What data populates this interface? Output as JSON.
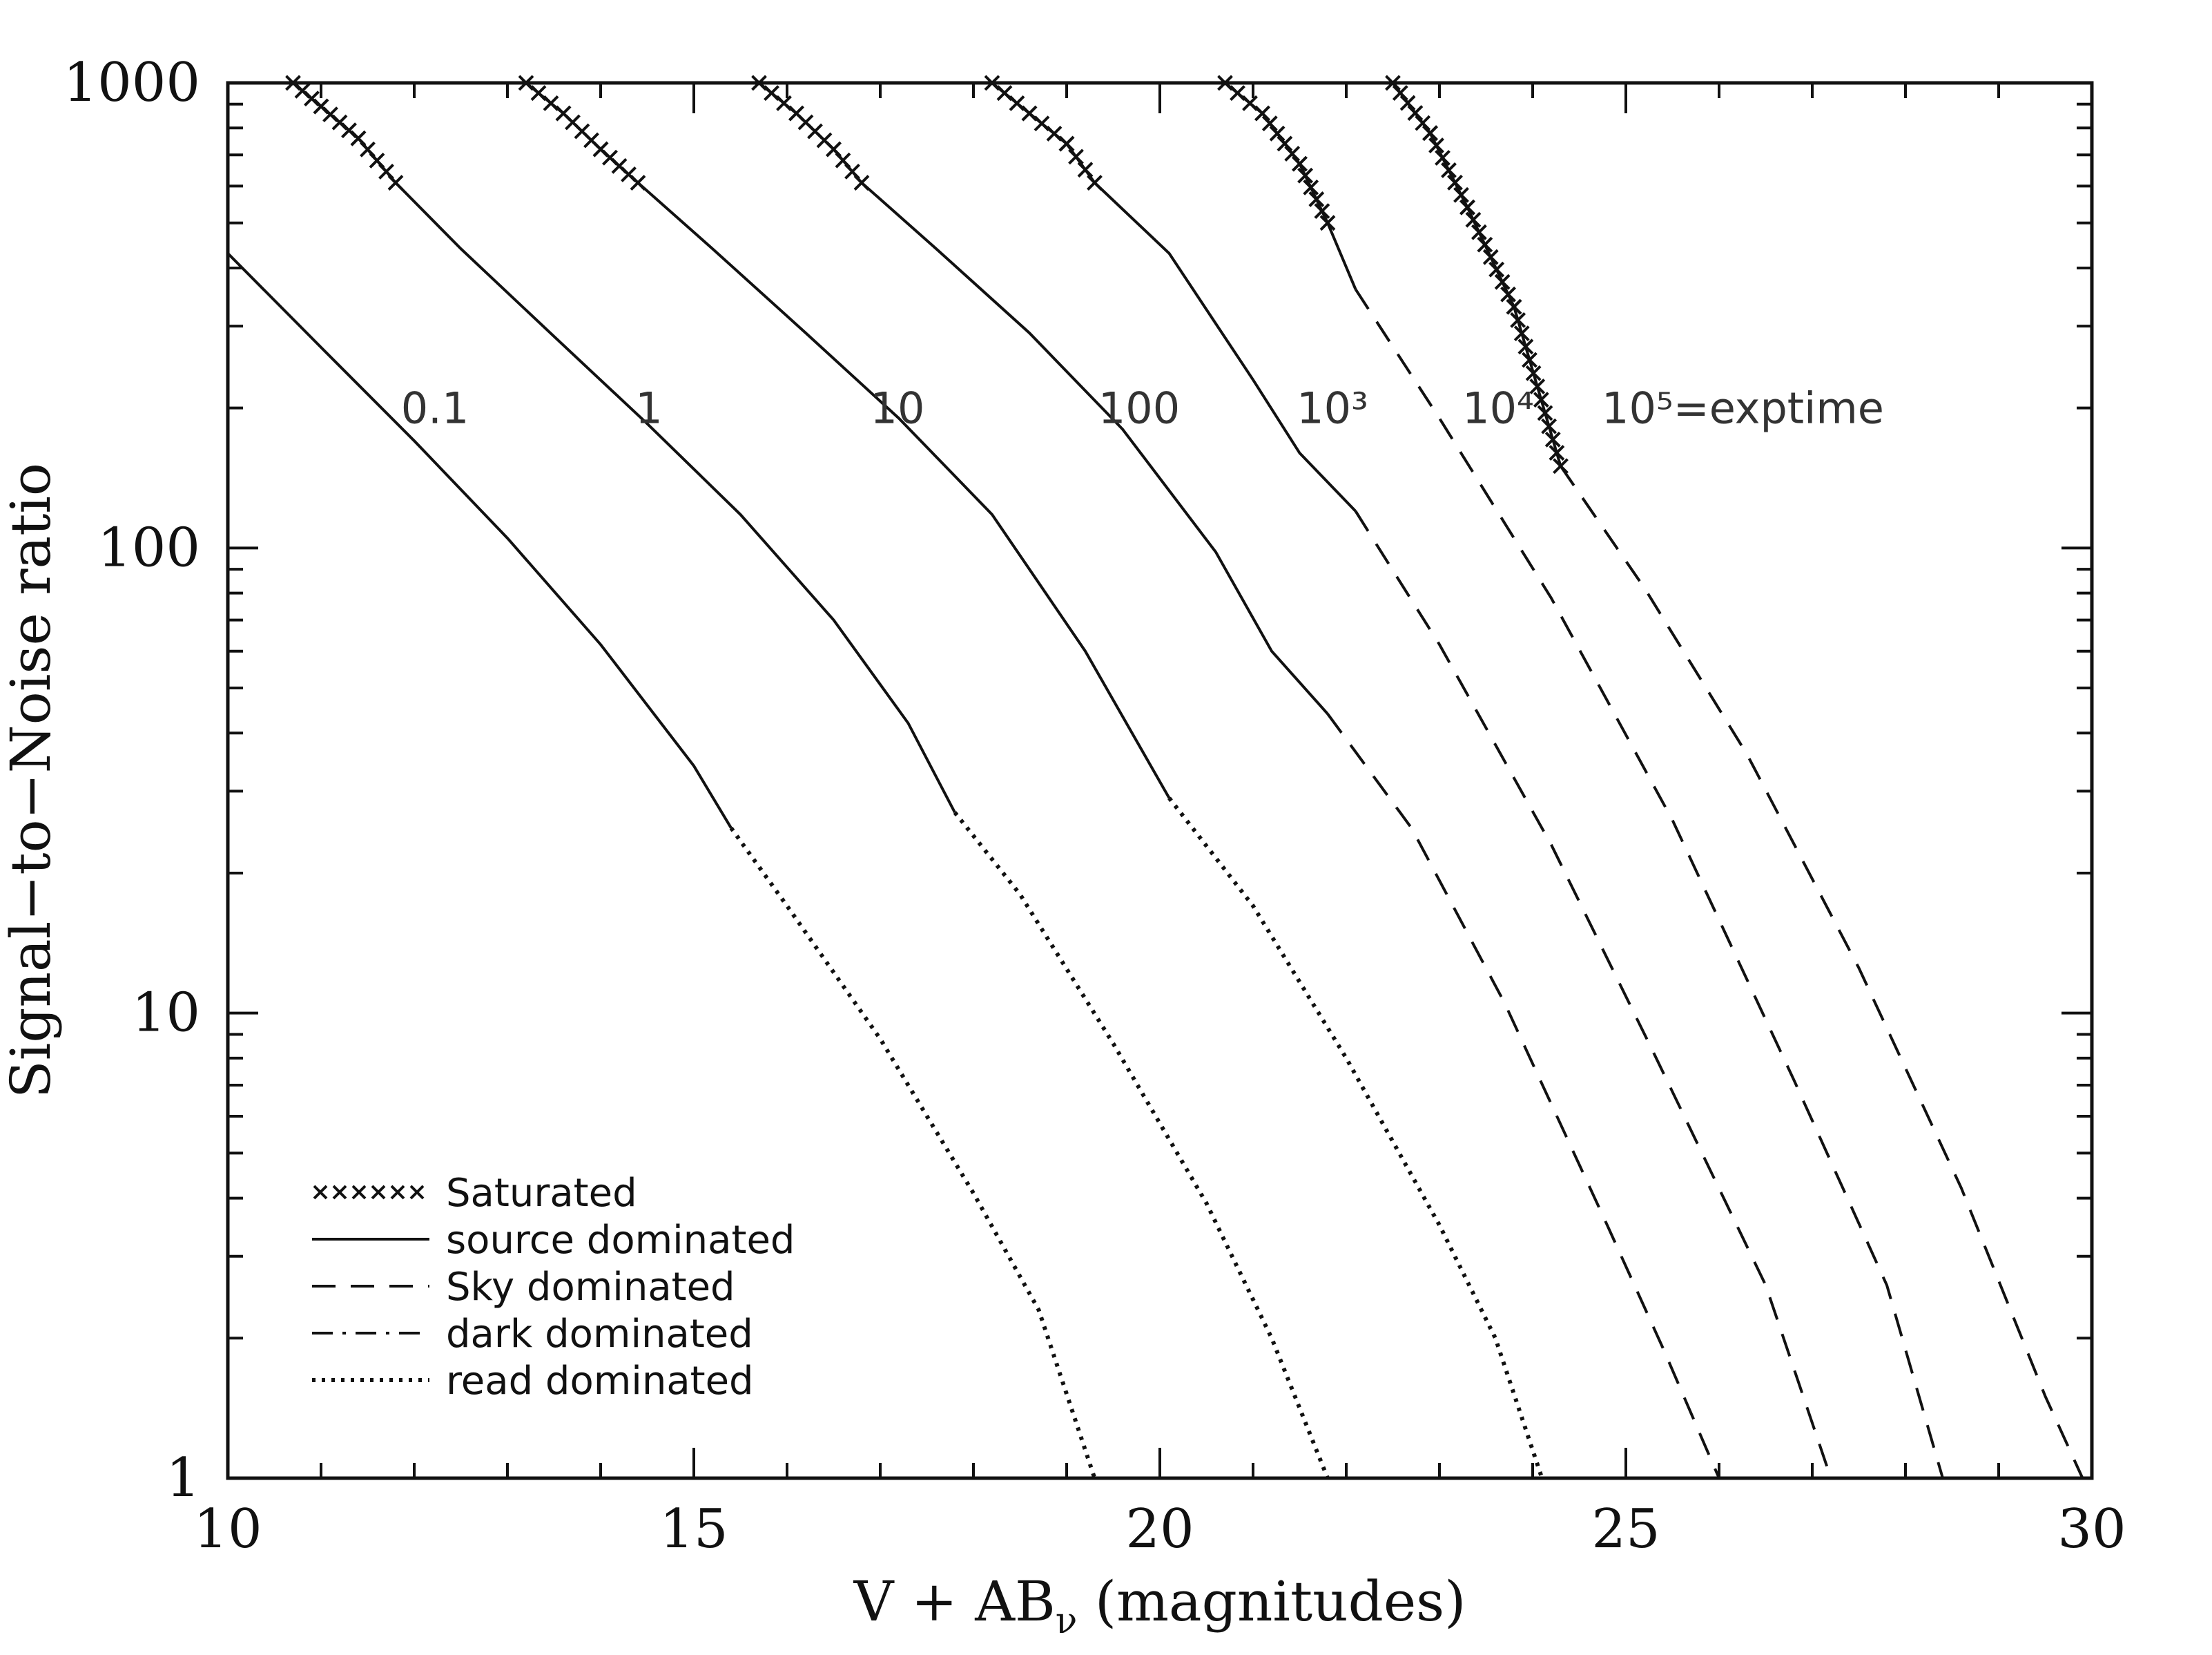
{
  "chart_data": {
    "type": "line",
    "xlabel": "V + AB",
    "xlabel_sub": "ν",
    "xlabel_suffix": " (magnitudes)",
    "ylabel": "Signal−to−Noise ratio",
    "xlim": [
      10,
      30
    ],
    "ylim": [
      1,
      1000
    ],
    "yscale": "log",
    "x_ticks": [
      10,
      15,
      20,
      25,
      30
    ],
    "x_tick_labels": [
      "10",
      "15",
      "20",
      "25",
      "30"
    ],
    "y_ticks": [
      1,
      10,
      100,
      1000
    ],
    "y_tick_labels": [
      "1",
      "10",
      "100",
      "1000"
    ],
    "grid": false,
    "legend_position": "bottom-left",
    "legend": [
      {
        "style": "saturated",
        "label": "Saturated"
      },
      {
        "style": "solid",
        "label": "source dominated"
      },
      {
        "style": "dashed",
        "label": "Sky dominated"
      },
      {
        "style": "dashdot",
        "label": "dark dominated"
      },
      {
        "style": "dotted",
        "label": "read dominated"
      }
    ],
    "curve_labels": [
      {
        "text": "0.1",
        "x": 14.5,
        "y": 200
      },
      {
        "text": "1",
        "x": 14.45,
        "y": 200
      },
      {
        "text": "10",
        "x": 17.15,
        "y": 200
      },
      {
        "text": "100",
        "x": 19.9,
        "y": 200
      },
      {
        "text": "10³",
        "x": 21.6,
        "y": 200
      },
      {
        "text": "10⁴",
        "x": 23.3,
        "y": 200
      },
      {
        "text": "10⁵=exptime",
        "x": 25.5,
        "y": 200
      }
    ],
    "series": [
      {
        "exptime": "0.1",
        "segments": [
          {
            "style": "solid",
            "points": [
              [
                10.0,
                430
              ],
              [
                11.0,
                270
              ],
              [
                12.0,
                170
              ],
              [
                13.0,
                105
              ],
              [
                14.0,
                62
              ],
              [
                15.0,
                34
              ],
              [
                15.4,
                25
              ]
            ]
          },
          {
            "style": "dotted",
            "points": [
              [
                15.4,
                25
              ],
              [
                16.0,
                17
              ],
              [
                17.0,
                8.8
              ],
              [
                18.0,
                4.1
              ],
              [
                18.7,
                2.3
              ],
              [
                19.3,
                1.0
              ]
            ]
          }
        ]
      },
      {
        "exptime": "1",
        "segments": [
          {
            "style": "saturated",
            "points": [
              [
                10.7,
                1000
              ],
              [
                11.0,
                890
              ],
              [
                11.4,
                760
              ],
              [
                11.8,
                610
              ]
            ]
          },
          {
            "style": "solid",
            "points": [
              [
                11.8,
                610
              ],
              [
                12.5,
                440
              ],
              [
                13.5,
                285
              ],
              [
                14.5,
                185
              ],
              [
                15.5,
                118
              ],
              [
                16.5,
                70
              ],
              [
                17.3,
                42
              ],
              [
                17.8,
                27
              ]
            ]
          },
          {
            "style": "dotted",
            "points": [
              [
                17.8,
                27
              ],
              [
                18.5,
                18
              ],
              [
                19.5,
                8.6
              ],
              [
                20.5,
                3.9
              ],
              [
                21.2,
                2.0
              ],
              [
                21.8,
                1.0
              ]
            ]
          }
        ]
      },
      {
        "exptime": "10",
        "segments": [
          {
            "style": "saturated",
            "points": [
              [
                13.2,
                1000
              ],
              [
                13.6,
                860
              ],
              [
                14.0,
                720
              ],
              [
                14.4,
                610
              ]
            ]
          },
          {
            "style": "solid",
            "points": [
              [
                14.4,
                610
              ],
              [
                15.2,
                440
              ],
              [
                16.2,
                290
              ],
              [
                17.2,
                190
              ],
              [
                18.2,
                118
              ],
              [
                19.2,
                60
              ],
              [
                20.1,
                29
              ]
            ]
          },
          {
            "style": "dotted",
            "points": [
              [
                20.1,
                29
              ],
              [
                21.0,
                17
              ],
              [
                22.0,
                8.0
              ],
              [
                23.0,
                3.5
              ],
              [
                23.6,
                2.0
              ],
              [
                24.1,
                1.0
              ]
            ]
          }
        ]
      },
      {
        "exptime": "100",
        "segments": [
          {
            "style": "saturated",
            "points": [
              [
                15.7,
                1000
              ],
              [
                16.1,
                860
              ],
              [
                16.5,
                720
              ],
              [
                16.8,
                610
              ]
            ]
          },
          {
            "style": "solid",
            "points": [
              [
                16.8,
                610
              ],
              [
                17.6,
                440
              ],
              [
                18.6,
                290
              ],
              [
                19.6,
                180
              ],
              [
                20.6,
                98
              ],
              [
                21.2,
                60
              ],
              [
                21.8,
                44
              ]
            ]
          },
          {
            "style": "dashed",
            "points": [
              [
                21.8,
                44
              ],
              [
                22.7,
                25
              ],
              [
                23.7,
                10.5
              ],
              [
                24.8,
                3.5
              ],
              [
                25.4,
                1.9
              ],
              [
                26.0,
                1.0
              ]
            ]
          }
        ]
      },
      {
        "exptime": "10³",
        "segments": [
          {
            "style": "saturated",
            "points": [
              [
                18.2,
                1000
              ],
              [
                18.6,
                860
              ],
              [
                19.0,
                740
              ],
              [
                19.3,
                610
              ]
            ]
          },
          {
            "style": "solid",
            "points": [
              [
                19.3,
                610
              ],
              [
                20.1,
                430
              ],
              [
                21.0,
                230
              ],
              [
                21.5,
                160
              ],
              [
                22.1,
                120
              ]
            ]
          },
          {
            "style": "dashed",
            "points": [
              [
                22.1,
                120
              ],
              [
                23.0,
                62
              ],
              [
                24.2,
                23
              ],
              [
                25.3,
                8.2
              ],
              [
                26.5,
                2.6
              ],
              [
                27.2,
                1.0
              ]
            ]
          }
        ]
      },
      {
        "exptime": "10⁴",
        "segments": [
          {
            "style": "saturated",
            "points": [
              [
                20.7,
                1000
              ],
              [
                21.1,
                860
              ],
              [
                21.5,
                670
              ],
              [
                21.8,
                500
              ]
            ]
          },
          {
            "style": "solid",
            "points": [
              [
                21.8,
                500
              ],
              [
                22.1,
                360
              ]
            ]
          },
          {
            "style": "dashed",
            "points": [
              [
                22.1,
                360
              ],
              [
                23.0,
                190
              ],
              [
                24.2,
                78
              ],
              [
                25.5,
                26
              ],
              [
                26.8,
                7.2
              ],
              [
                27.8,
                2.6
              ],
              [
                28.4,
                1.0
              ]
            ]
          }
        ]
      },
      {
        "exptime": "10⁵",
        "segments": [
          {
            "style": "saturated",
            "points": [
              [
                22.5,
                1000
              ],
              [
                22.9,
                780
              ],
              [
                23.3,
                540
              ],
              [
                23.8,
                330
              ],
              [
                24.3,
                150
              ]
            ]
          },
          {
            "style": "dashed",
            "points": [
              [
                24.3,
                150
              ],
              [
                25.2,
                82
              ],
              [
                26.3,
                36
              ],
              [
                27.5,
                12.5
              ],
              [
                28.6,
                4.2
              ],
              [
                29.5,
                1.5
              ],
              [
                29.9,
                1.0
              ]
            ]
          }
        ]
      }
    ]
  }
}
